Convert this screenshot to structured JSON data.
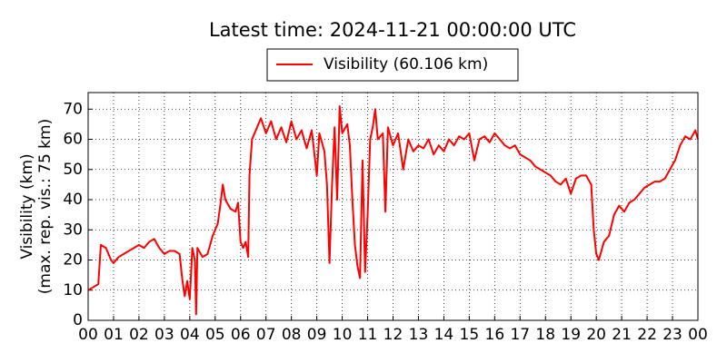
{
  "chart_data": {
    "type": "line",
    "title": "Latest time: 2024-11-21 00:00:00 UTC",
    "y_label_lines": [
      "Visibility (km)",
      "(max. rep. vis.: 75 km)"
    ],
    "x": [
      0,
      0.2,
      0.4,
      0.5,
      0.7,
      0.9,
      1.0,
      1.2,
      1.4,
      1.6,
      1.8,
      2.0,
      2.2,
      2.4,
      2.6,
      2.8,
      3.0,
      3.2,
      3.4,
      3.6,
      3.7,
      3.8,
      3.9,
      4.0,
      4.1,
      4.2,
      4.25,
      4.3,
      4.5,
      4.7,
      4.9,
      5.0,
      5.1,
      5.2,
      5.3,
      5.4,
      5.6,
      5.8,
      5.9,
      6.0,
      6.1,
      6.2,
      6.3,
      6.35,
      6.45,
      6.6,
      6.8,
      7.0,
      7.2,
      7.4,
      7.6,
      7.8,
      8.0,
      8.2,
      8.4,
      8.6,
      8.8,
      9.0,
      9.1,
      9.3,
      9.4,
      9.5,
      9.6,
      9.7,
      9.8,
      9.9,
      10.0,
      10.2,
      10.3,
      10.4,
      10.5,
      10.6,
      10.7,
      10.8,
      10.9,
      11.0,
      11.1,
      11.2,
      11.3,
      11.4,
      11.6,
      11.7,
      11.8,
      12.0,
      12.2,
      12.4,
      12.6,
      12.8,
      13.0,
      13.2,
      13.4,
      13.6,
      13.8,
      14.0,
      14.2,
      14.4,
      14.6,
      14.8,
      15.0,
      15.2,
      15.4,
      15.6,
      15.8,
      16.0,
      16.2,
      16.4,
      16.6,
      16.8,
      17.0,
      17.2,
      17.4,
      17.6,
      17.8,
      18.0,
      18.2,
      18.4,
      18.6,
      18.8,
      19.0,
      19.2,
      19.4,
      19.6,
      19.8,
      19.9,
      20.0,
      20.1,
      20.3,
      20.5,
      20.7,
      20.9,
      21.1,
      21.3,
      21.5,
      21.7,
      21.9,
      22.1,
      22.3,
      22.5,
      22.7,
      22.9,
      23.1,
      23.3,
      23.5,
      23.7,
      23.9,
      24.0
    ],
    "series": [
      {
        "name": "Visibility (60.106 km)",
        "color": "#ff0000",
        "values": [
          10,
          11,
          12,
          25,
          24,
          20,
          19,
          21,
          22,
          23,
          24,
          25,
          24,
          26,
          27,
          24,
          22,
          23,
          23,
          22,
          14,
          8,
          13,
          7,
          24,
          20,
          2,
          24,
          21,
          22,
          28,
          30,
          32,
          38,
          45,
          40,
          37,
          36,
          39,
          26,
          24,
          26,
          21,
          48,
          60,
          63,
          67,
          62,
          66,
          60,
          64,
          59,
          66,
          60,
          63,
          57,
          63,
          48,
          62,
          56,
          45,
          19,
          45,
          64,
          40,
          71,
          62,
          65,
          58,
          40,
          25,
          18,
          14,
          53,
          16,
          35,
          60,
          64,
          70,
          60,
          62,
          36,
          64,
          58,
          62,
          50,
          60,
          56,
          58,
          57,
          60,
          55,
          58,
          56,
          60,
          58,
          61,
          60,
          62,
          53,
          60,
          61,
          59,
          62,
          60,
          58,
          57,
          58,
          55,
          54,
          53,
          51,
          50,
          49,
          48,
          46,
          45,
          47,
          42,
          47,
          48,
          48,
          45,
          30,
          22,
          20,
          26,
          28,
          35,
          38,
          36,
          39,
          40,
          42,
          44,
          45,
          46,
          46,
          47,
          50,
          53,
          58,
          61,
          60,
          63,
          60
        ]
      }
    ],
    "xlim": [
      0,
      24
    ],
    "xticks": [
      {
        "value": 0,
        "label": "00"
      },
      {
        "value": 1,
        "label": "01"
      },
      {
        "value": 2,
        "label": "02"
      },
      {
        "value": 3,
        "label": "03"
      },
      {
        "value": 4,
        "label": "04"
      },
      {
        "value": 5,
        "label": "05"
      },
      {
        "value": 6,
        "label": "06"
      },
      {
        "value": 7,
        "label": "07"
      },
      {
        "value": 8,
        "label": "08"
      },
      {
        "value": 9,
        "label": "09"
      },
      {
        "value": 10,
        "label": "10"
      },
      {
        "value": 11,
        "label": "11"
      },
      {
        "value": 12,
        "label": "12"
      },
      {
        "value": 13,
        "label": "13"
      },
      {
        "value": 14,
        "label": "14"
      },
      {
        "value": 15,
        "label": "15"
      },
      {
        "value": 16,
        "label": "16"
      },
      {
        "value": 17,
        "label": "17"
      },
      {
        "value": 18,
        "label": "18"
      },
      {
        "value": 19,
        "label": "19"
      },
      {
        "value": 20,
        "label": "20"
      },
      {
        "value": 21,
        "label": "21"
      },
      {
        "value": 22,
        "label": "22"
      },
      {
        "value": 23,
        "label": "23"
      },
      {
        "value": 24,
        "label": "00"
      }
    ],
    "ylim": [
      0,
      75.5
    ],
    "yticks": [
      0,
      10,
      20,
      30,
      40,
      50,
      60,
      70
    ],
    "grid": true
  }
}
